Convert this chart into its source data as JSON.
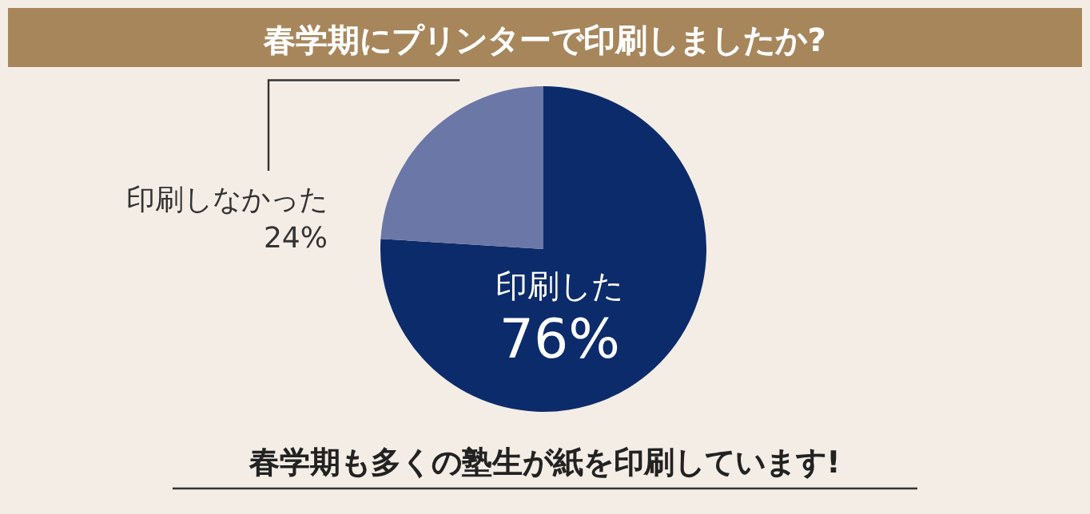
{
  "chart_data": {
    "type": "pie",
    "title": "春学期にプリンターで印刷しましたか?",
    "categories": [
      "印刷した",
      "印刷しなかった"
    ],
    "values": [
      76,
      24
    ],
    "colors": [
      "#0c2b6b",
      "#6b77a6"
    ],
    "value_labels": [
      "76%",
      "24%"
    ],
    "annotations": [
      "春学期も多くの塾生が紙を印刷しています!"
    ]
  }
}
